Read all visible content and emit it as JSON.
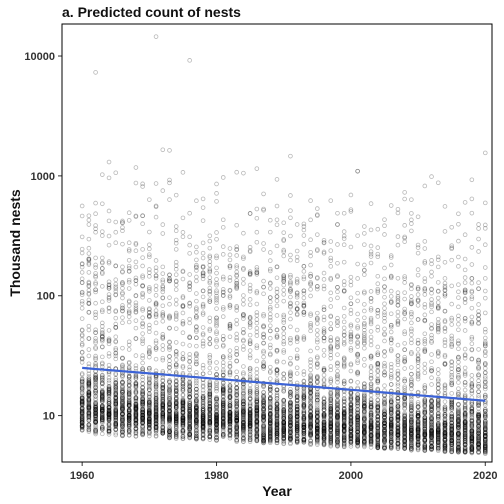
{
  "chart_data": {
    "type": "scatter",
    "title": "a. Predicted count of nests",
    "xlabel": "Year",
    "ylabel": "Thousand nests",
    "x_ticks": [
      1960,
      1980,
      2000,
      2020
    ],
    "y_ticks": [
      10,
      100,
      1000,
      10000
    ],
    "x_tick_labels": [
      "1960",
      "1980",
      "2000",
      "2020"
    ],
    "y_tick_labels": [
      "10",
      "100",
      "1000",
      "10000"
    ],
    "xlim": [
      1957,
      2021
    ],
    "ylim": [
      4.1,
      18500
    ],
    "y_scale": "log",
    "grid": false,
    "legend": "none",
    "colors": {
      "points": "#000000",
      "trend": "#3b62d6",
      "frame": "#000000"
    },
    "series": [
      {
        "type": "scatter",
        "x_range": [
          1960,
          2020
        ],
        "points_per_year": 95,
        "median_start": 11.5,
        "median_end": 7.0,
        "min_start": 7.0,
        "min_end": 4.8,
        "p90_start": 210,
        "p90_end": 130,
        "max_observed": 14500
      },
      {
        "type": "line",
        "x": [
          1960,
          2020
        ],
        "y": [
          25,
          13.3
        ]
      }
    ]
  }
}
